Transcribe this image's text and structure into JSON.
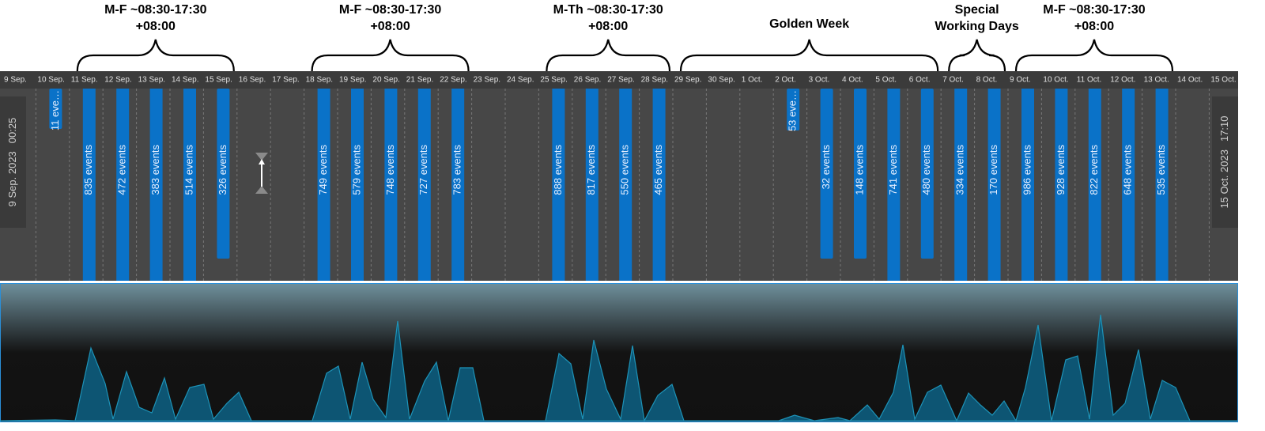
{
  "annotations": [
    {
      "lines": [
        "M-F ~08:30-17:30",
        "+08:00"
      ]
    },
    {
      "lines": [
        "M-F ~08:30-17:30",
        "+08:00"
      ]
    },
    {
      "lines": [
        "M-Th ~08:30-17:30",
        "+08:00"
      ]
    },
    {
      "lines": [
        "Golden Week"
      ]
    },
    {
      "lines": [
        "Special",
        "Working Days"
      ]
    },
    {
      "lines": [
        "M-F ~08:30-17:30",
        "+08:00"
      ]
    }
  ],
  "dates": [
    "9 Sep.",
    "10 Sep.",
    "11 Sep.",
    "12 Sep.",
    "13 Sep.",
    "14 Sep.",
    "15 Sep.",
    "16 Sep.",
    "17 Sep.",
    "18 Sep.",
    "19 Sep.",
    "20 Sep.",
    "21 Sep.",
    "22 Sep.",
    "23 Sep.",
    "24 Sep.",
    "25 Sep.",
    "26 Sep.",
    "27 Sep.",
    "28 Sep.",
    "29 Sep.",
    "30 Sep.",
    "1 Oct.",
    "2 Oct.",
    "3 Oct.",
    "4 Oct.",
    "5 Oct.",
    "6 Oct.",
    "7 Oct.",
    "8 Oct.",
    "9 Oct.",
    "10 Oct.",
    "11 Oct.",
    "12 Oct.",
    "13 Oct.",
    "14 Oct.",
    "15 Oct."
  ],
  "bars": [
    "11 eve…",
    "835 events",
    "472 events",
    "383 events",
    "514 events",
    "326 events",
    "749 events",
    "579 events",
    "748 events",
    "727 events",
    "783 events",
    "888 events",
    "817 events",
    "550 events",
    "465 events",
    "53 eve…",
    "32 events",
    "148 events",
    "741 events",
    "480 events",
    "334 events",
    "170 events",
    "986 events",
    "928 events",
    "822 events",
    "648 events",
    "535 events"
  ],
  "range_start": {
    "date": "9 Sep. 2023",
    "time": "00:25"
  },
  "range_end": {
    "date": "15 Oct. 2023",
    "time": "17:10"
  }
}
